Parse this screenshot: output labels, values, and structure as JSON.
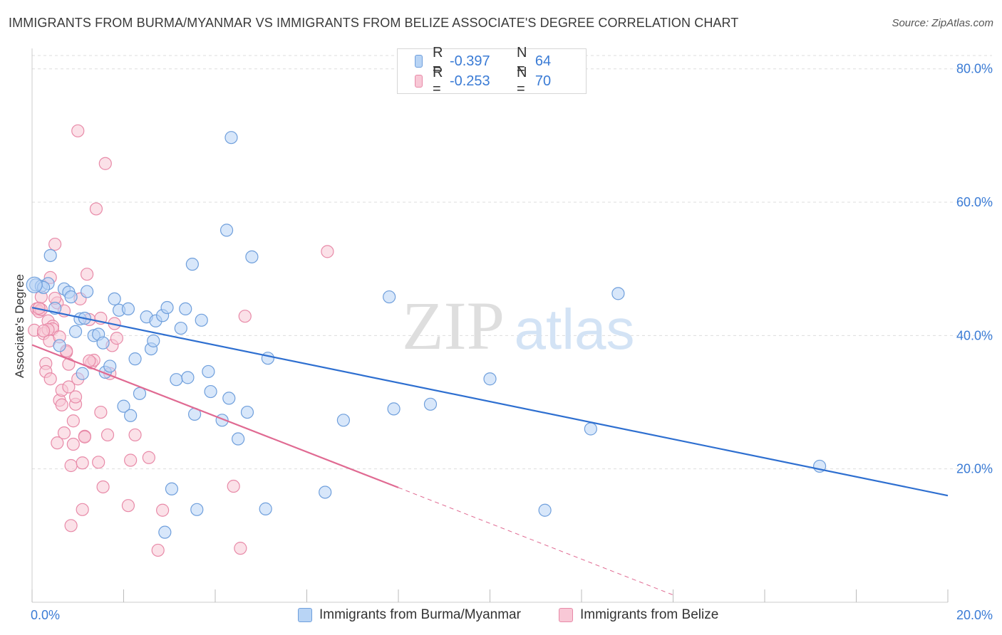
{
  "title": "IMMIGRANTS FROM BURMA/MYANMAR VS IMMIGRANTS FROM BELIZE ASSOCIATE'S DEGREE CORRELATION CHART",
  "source": "Source: ZipAtlas.com",
  "watermark": {
    "zip": "ZIP",
    "atlas": "atlas"
  },
  "legend": {
    "series1": {
      "r_label": "R =",
      "r_value": "-0.397",
      "n_label": "N =",
      "n_value": "64"
    },
    "series2": {
      "r_label": "R =",
      "r_value": "-0.253",
      "n_label": "N =",
      "n_value": "70"
    }
  },
  "colors": {
    "blue_fill": "#b8d4f5",
    "blue_stroke": "#6f9fdc",
    "blue_line": "#2e6fd0",
    "pink_fill": "#f8c8d6",
    "pink_stroke": "#e88aa8",
    "pink_line": "#e06a92",
    "grid": "#dddddd",
    "tick_text": "#3a7bd5"
  },
  "chart_data": {
    "type": "scatter",
    "ylabel": "Associate's Degree",
    "xlim": [
      0,
      20
    ],
    "ylim": [
      0,
      82
    ],
    "x_ticks": [
      0,
      2,
      4,
      6,
      8,
      10,
      12,
      14,
      16,
      18,
      20
    ],
    "x_tick_labels": [
      "0.0%",
      "20.0%"
    ],
    "y_ticks": [
      20,
      40,
      60,
      80
    ],
    "y_tick_labels": [
      "20.0%",
      "40.0%",
      "60.0%",
      "80.0%"
    ],
    "series": [
      {
        "name": "Immigrants from Burma/Myanmar",
        "color": "blue",
        "r": -0.397,
        "n": 64,
        "trend": {
          "x": [
            0,
            20
          ],
          "y": [
            44.2,
            16.0
          ]
        },
        "points": [
          [
            0.08,
            47.6
          ],
          [
            0.2,
            47.4
          ],
          [
            0.35,
            47.8
          ],
          [
            0.25,
            47.2
          ],
          [
            0.4,
            52.0
          ],
          [
            0.5,
            44.1
          ],
          [
            0.6,
            38.5
          ],
          [
            0.7,
            47.0
          ],
          [
            0.8,
            46.5
          ],
          [
            0.85,
            45.8
          ],
          [
            0.95,
            40.6
          ],
          [
            1.05,
            42.5
          ],
          [
            1.15,
            42.6
          ],
          [
            1.2,
            46.6
          ],
          [
            1.35,
            40.0
          ],
          [
            1.45,
            40.2
          ],
          [
            1.55,
            38.9
          ],
          [
            1.6,
            34.5
          ],
          [
            1.7,
            35.4
          ],
          [
            1.8,
            45.5
          ],
          [
            1.9,
            43.8
          ],
          [
            2.0,
            29.4
          ],
          [
            2.1,
            44.0
          ],
          [
            2.15,
            28.0
          ],
          [
            2.25,
            36.5
          ],
          [
            2.35,
            31.3
          ],
          [
            2.5,
            42.8
          ],
          [
            2.6,
            38.0
          ],
          [
            2.65,
            39.2
          ],
          [
            2.7,
            42.2
          ],
          [
            2.85,
            43.0
          ],
          [
            2.95,
            44.2
          ],
          [
            3.05,
            17.0
          ],
          [
            3.15,
            33.4
          ],
          [
            3.25,
            41.1
          ],
          [
            3.35,
            44.0
          ],
          [
            3.4,
            33.7
          ],
          [
            3.5,
            50.7
          ],
          [
            3.55,
            28.2
          ],
          [
            3.7,
            42.3
          ],
          [
            3.85,
            34.6
          ],
          [
            4.15,
            27.3
          ],
          [
            4.25,
            55.8
          ],
          [
            4.3,
            30.6
          ],
          [
            4.35,
            69.7
          ],
          [
            4.5,
            24.5
          ],
          [
            4.7,
            28.5
          ],
          [
            4.8,
            51.8
          ],
          [
            5.15,
            36.6
          ],
          [
            6.4,
            16.5
          ],
          [
            6.8,
            27.3
          ],
          [
            7.8,
            45.8
          ],
          [
            7.9,
            29.0
          ],
          [
            8.7,
            29.7
          ],
          [
            10.0,
            33.5
          ],
          [
            11.2,
            13.8
          ],
          [
            12.2,
            26.0
          ],
          [
            12.8,
            46.3
          ],
          [
            17.2,
            20.4
          ],
          [
            3.6,
            13.9
          ],
          [
            2.9,
            10.5
          ],
          [
            3.9,
            31.6
          ],
          [
            5.1,
            14.0
          ],
          [
            1.1,
            34.3
          ]
        ]
      },
      {
        "name": "Immigrants from Belize",
        "color": "pink",
        "r": -0.253,
        "n": 70,
        "trend": {
          "x": [
            0,
            8.0
          ],
          "y": [
            38.6,
            17.2
          ]
        },
        "trend_dashed": {
          "x": [
            8.0,
            14.0
          ],
          "y": [
            17.2,
            1.1
          ]
        },
        "points": [
          [
            0.05,
            40.8
          ],
          [
            0.1,
            44.0
          ],
          [
            0.15,
            43.6
          ],
          [
            0.2,
            45.8
          ],
          [
            0.25,
            40.3
          ],
          [
            0.3,
            35.8
          ],
          [
            0.35,
            42.2
          ],
          [
            0.38,
            39.2
          ],
          [
            0.4,
            48.7
          ],
          [
            0.45,
            41.4
          ],
          [
            0.5,
            53.7
          ],
          [
            0.55,
            44.9
          ],
          [
            0.6,
            30.3
          ],
          [
            0.65,
            31.8
          ],
          [
            0.7,
            25.4
          ],
          [
            0.75,
            37.5
          ],
          [
            0.8,
            35.7
          ],
          [
            0.85,
            20.5
          ],
          [
            0.9,
            27.2
          ],
          [
            0.95,
            29.7
          ],
          [
            1.0,
            33.5
          ],
          [
            1.05,
            45.5
          ],
          [
            1.1,
            20.9
          ],
          [
            1.15,
            24.9
          ],
          [
            1.2,
            49.2
          ],
          [
            1.25,
            42.4
          ],
          [
            1.3,
            35.9
          ],
          [
            1.35,
            36.3
          ],
          [
            1.4,
            59.0
          ],
          [
            1.45,
            21.0
          ],
          [
            1.5,
            42.6
          ],
          [
            1.55,
            17.3
          ],
          [
            1.6,
            65.8
          ],
          [
            1.65,
            25.1
          ],
          [
            1.7,
            34.3
          ],
          [
            1.75,
            38.5
          ],
          [
            1.8,
            41.8
          ],
          [
            1.85,
            39.6
          ],
          [
            2.1,
            14.5
          ],
          [
            2.15,
            21.3
          ],
          [
            2.25,
            25.1
          ],
          [
            2.55,
            21.7
          ],
          [
            2.75,
            7.8
          ],
          [
            2.85,
            13.8
          ],
          [
            4.4,
            17.4
          ],
          [
            4.55,
            8.1
          ],
          [
            4.65,
            42.9
          ],
          [
            6.45,
            52.6
          ],
          [
            1.0,
            70.7
          ],
          [
            0.3,
            34.6
          ],
          [
            0.4,
            33.5
          ],
          [
            0.55,
            23.9
          ],
          [
            0.65,
            29.6
          ],
          [
            0.8,
            32.3
          ],
          [
            0.85,
            11.5
          ],
          [
            1.1,
            13.9
          ],
          [
            0.45,
            41.0
          ],
          [
            0.2,
            43.9
          ],
          [
            0.15,
            44.1
          ],
          [
            0.6,
            39.8
          ],
          [
            0.7,
            43.7
          ],
          [
            0.5,
            45.6
          ],
          [
            0.75,
            37.7
          ],
          [
            0.95,
            30.8
          ],
          [
            1.25,
            36.2
          ],
          [
            1.5,
            28.5
          ],
          [
            0.9,
            23.7
          ],
          [
            0.35,
            40.9
          ],
          [
            0.25,
            40.7
          ],
          [
            1.15,
            24.8
          ]
        ]
      }
    ]
  }
}
